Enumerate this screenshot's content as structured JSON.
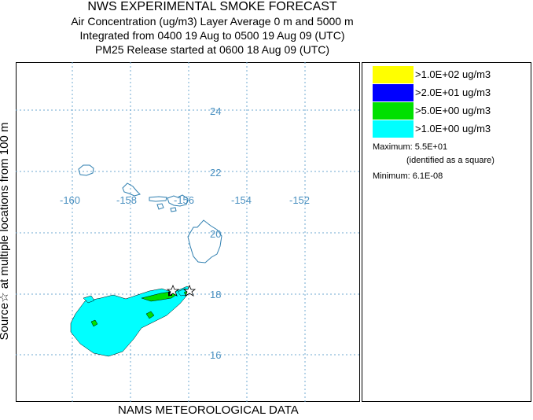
{
  "header": {
    "title": "NWS EXPERIMENTAL SMOKE FORECAST",
    "line1": "Air Concentration (ug/m3) Layer Average    0 m and  5000 m",
    "line2": "Integrated from 0400 19 Aug to 0500 19 Aug 09 (UTC)",
    "line3": "PM25 Release started at 0600 18 Aug 09 (UTC)"
  },
  "side_label": "Source☆  at multiple locations    from   100 m",
  "bottom_label": "NAMS METEOROLOGICAL DATA",
  "map": {
    "lon_labels": [
      "-160",
      "-158",
      "-156",
      "-154",
      "-152"
    ],
    "lat_labels": [
      "24",
      "22",
      "20",
      "18",
      "16"
    ],
    "grid_color": "#6fa8d0",
    "coast_color": "#2f7fb0"
  },
  "legend": {
    "items": [
      {
        "label": ">1.0E+02 ug/m3",
        "color": "#ffff00"
      },
      {
        "label": ">2.0E+01 ug/m3",
        "color": "#0000ff"
      },
      {
        "label": ">5.0E+00 ug/m3",
        "color": "#00e000"
      },
      {
        "label": ">1.0E+00 ug/m3",
        "color": "#00ffff"
      }
    ],
    "maximum": "Maximum: 5.5E+01",
    "max_note": "(identified as a square)",
    "minimum": "Minimum: 6.1E-08"
  }
}
